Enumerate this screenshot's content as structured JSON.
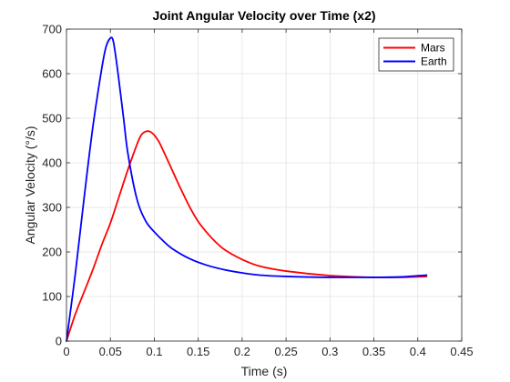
{
  "chart_data": {
    "type": "line",
    "title": "Joint Angular Velocity over Time (x2)",
    "xlabel": "Time (s)",
    "ylabel": "Angular Velocity (°/s)",
    "xlim": [
      0,
      0.45
    ],
    "ylim": [
      0,
      700
    ],
    "xticks": [
      0,
      0.05,
      0.1,
      0.15,
      0.2,
      0.25,
      0.3,
      0.35,
      0.4,
      0.45
    ],
    "yticks": [
      0,
      100,
      200,
      300,
      400,
      500,
      600,
      700
    ],
    "xtick_labels": [
      "0",
      "0.05",
      "0.1",
      "0.15",
      "0.2",
      "0.25",
      "0.3",
      "0.35",
      "0.4",
      "0.45"
    ],
    "ytick_labels": [
      "0",
      "100",
      "200",
      "300",
      "400",
      "500",
      "600",
      "700"
    ],
    "grid": true,
    "legend_position": "top-right",
    "series": [
      {
        "name": "Mars",
        "color": "#ff0000",
        "x": [
          0,
          0.01,
          0.02,
          0.03,
          0.04,
          0.05,
          0.06,
          0.07,
          0.08,
          0.085,
          0.09,
          0.095,
          0.1,
          0.105,
          0.11,
          0.12,
          0.13,
          0.14,
          0.15,
          0.16,
          0.17,
          0.18,
          0.2,
          0.22,
          0.25,
          0.3,
          0.35,
          0.38,
          0.41
        ],
        "y": [
          0,
          60,
          110,
          160,
          215,
          265,
          325,
          385,
          440,
          462,
          470,
          470,
          462,
          448,
          428,
          385,
          342,
          302,
          268,
          243,
          222,
          205,
          183,
          168,
          157,
          147,
          143,
          143,
          145
        ]
      },
      {
        "name": "Earth",
        "color": "#0000ff",
        "x": [
          0,
          0.01,
          0.02,
          0.03,
          0.04,
          0.045,
          0.05,
          0.053,
          0.056,
          0.06,
          0.065,
          0.07,
          0.08,
          0.09,
          0.1,
          0.11,
          0.12,
          0.14,
          0.16,
          0.18,
          0.2,
          0.22,
          0.25,
          0.3,
          0.35,
          0.38,
          0.41
        ],
        "y": [
          0,
          150,
          320,
          480,
          610,
          660,
          680,
          675,
          640,
          580,
          500,
          420,
          320,
          270,
          245,
          225,
          208,
          185,
          170,
          160,
          153,
          148,
          145,
          143,
          143,
          144,
          148
        ]
      }
    ]
  }
}
